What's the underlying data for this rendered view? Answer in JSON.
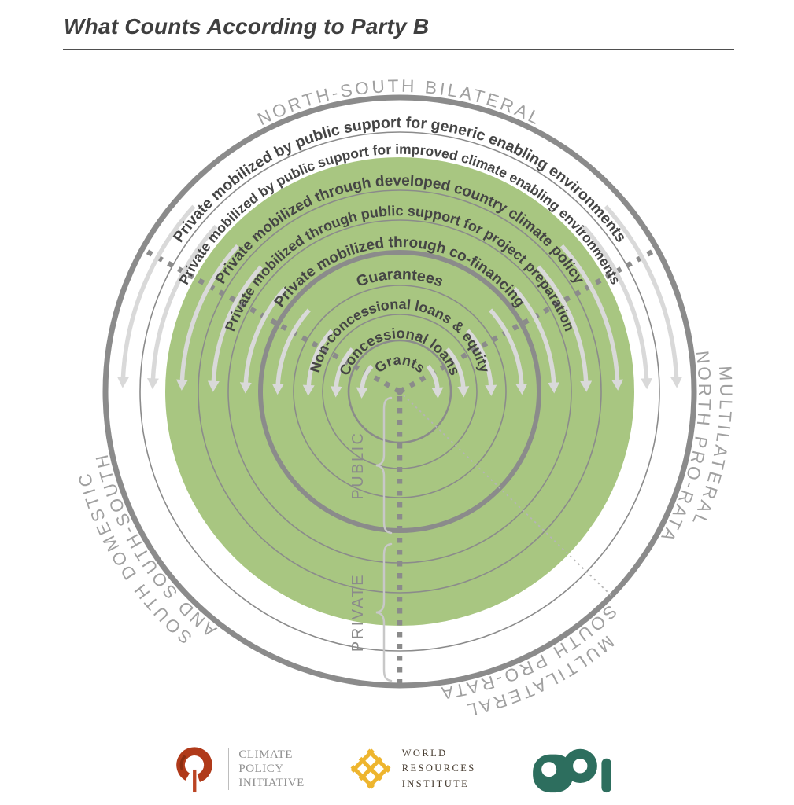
{
  "title": "What Counts According to Party B",
  "rings": [
    "Private mobilized by public support for generic enabling environments",
    "Private mobilized by public support for improved climate enabling environments",
    "Private mobilized through developed country climate policy",
    "Private mobilized through public support for project preparation",
    "Private mobilized through co-financing",
    "Guarantees",
    "Non-concessional loans & equity",
    "Concessional loans",
    "Grants"
  ],
  "sectors": {
    "top": "NORTH-SOUTH BILATERAL",
    "right": {
      "line1": "MULTILATERAL",
      "line2": "NORTH PRO-RATA"
    },
    "bottom": {
      "line1": "MULTILATERAL",
      "line2": "SOUTH PRO-RATA"
    },
    "left": {
      "line1": "SOUTH DOMESTIC",
      "line2": "AND SOUTH-SOUTH"
    }
  },
  "axis": {
    "public": "PUBLIC",
    "private": "PRIVATE"
  },
  "colors": {
    "green": "#a8c681",
    "ring_gray": "#8b8b8b",
    "arrow": "#d9d9d9",
    "label_dark": "#454545",
    "sector_text": "#a0a0a0",
    "cpi_red": "#b03a1a",
    "cpi_red_dark": "#8b2d10",
    "wri_gold": "#eeb52e",
    "odi_teal": "#2d6e5e"
  },
  "logos": {
    "cpi": {
      "lines": [
        "CLIMATE",
        "POLICY",
        "INITIATIVE"
      ]
    },
    "wri": {
      "lines": [
        "WORLD",
        "RESOURCES",
        "INSTITUTE"
      ]
    },
    "odi": {
      "name": "ODI"
    }
  }
}
